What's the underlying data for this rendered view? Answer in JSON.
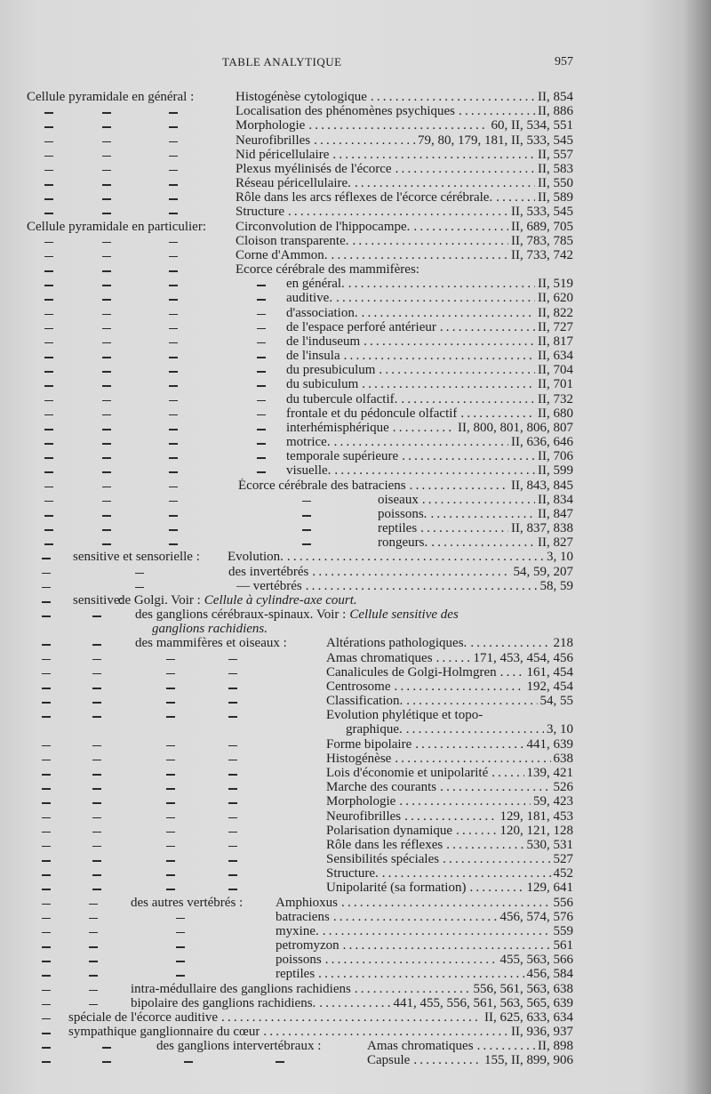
{
  "header": {
    "title": "TABLE ANALYTIQUE",
    "page_number": "957"
  },
  "ditto_mark": "—",
  "rows": [
    {
      "lead": "Cellule pyramidale en général :",
      "entry": "Histogénèse cytologique",
      "pages": "II, 854"
    },
    {
      "entry": "Localisation des phénomènes psychiques",
      "pages": "II, 886"
    },
    {
      "entry": "Morphologie",
      "pages": "60, II, 534, 551"
    },
    {
      "entry": "Neurofibrilles",
      "pages": "79, 80, 179, 181, II, 533, 545"
    },
    {
      "entry": "Nid péricellulaire",
      "pages": "II, 557"
    },
    {
      "entry": "Plexus myélinisés de l'écorce",
      "pages": "II, 583"
    },
    {
      "entry": "Réseau péricellulaire.",
      "pages": "II, 550"
    },
    {
      "entry": "Rôle dans les arcs réflexes de l'écorce cérébrale.",
      "pages": "II, 589"
    },
    {
      "entry": "Structure",
      "pages": "II, 533, 545"
    },
    {
      "lead": "Cellule pyramidale en particulier:",
      "entry": "Circonvolution de l'hippocampe.",
      "pages": "II, 689, 705"
    },
    {
      "entry": "Cloison transparente.",
      "pages": "II, 783, 785"
    },
    {
      "entry": "Corne d'Ammon.",
      "pages": "II, 733, 742"
    },
    {
      "entry": "Ecorce cérébrale des mammifères:"
    },
    {
      "entry": "en général.",
      "pages": "II, 519"
    },
    {
      "entry": "auditive.",
      "pages": "II, 620"
    },
    {
      "entry": "d'association.",
      "pages": "II, 822"
    },
    {
      "entry": "de l'espace perforé antérieur",
      "pages": "II, 727"
    },
    {
      "entry": "de l'induseum",
      "pages": "II, 817"
    },
    {
      "entry": "de l'insula",
      "pages": "II, 634"
    },
    {
      "entry": "du presubiculum",
      "pages": "II, 704"
    },
    {
      "entry": "du subiculum",
      "pages": "II, 701"
    },
    {
      "entry": "du tubercule olfactif.",
      "pages": "II, 732"
    },
    {
      "entry": "frontale et du pédoncule olfactif",
      "pages": "II, 680"
    },
    {
      "entry": "interhémisphérique",
      "pages": "II, 800, 801, 806, 807"
    },
    {
      "entry": "motrice.",
      "pages": "II, 636, 646"
    },
    {
      "entry": "temporale supérieure",
      "pages": "II, 706"
    },
    {
      "entry": "visuelle.",
      "pages": "II, 599"
    },
    {
      "entry": "Écorce cérébrale des batraciens",
      "pages": "II, 843, 845"
    },
    {
      "entry": "oiseaux",
      "pages": "II, 834"
    },
    {
      "entry": "poissons.",
      "pages": "II, 847"
    },
    {
      "entry": "reptiles",
      "pages": "II, 837, 838"
    },
    {
      "entry": "rongeurs.",
      "pages": "II, 827"
    },
    {
      "lead": "sensitive et sensorielle :",
      "entry": "Evolution.",
      "pages": "3,  10"
    },
    {
      "entry": "des invertébrés",
      "pages": "54, 59, 207"
    },
    {
      "entry": "— vertébrés",
      "pages": "58,  59"
    },
    {
      "lead": "sensitive:",
      "entry": "de Golgi. Voir :",
      "entry_italic": "Cellule à cylindre-axe court."
    },
    {
      "entry": "des ganglions cérébraux-spinaux. Voir :",
      "entry_italic": "Cellule sensitive des"
    },
    {
      "entry_italic": "ganglions rachidiens."
    },
    {
      "lead": "des mammifères et oiseaux :",
      "entry": "Altérations pathologiques.",
      "pages": "218"
    },
    {
      "entry": "Amas chromatiques",
      "pages": "171, 453, 454, 456"
    },
    {
      "entry": "Canalicules de Golgi-Holmgren",
      "pages": "161, 454"
    },
    {
      "entry": "Centrosome",
      "pages": "192, 454"
    },
    {
      "entry": "Classification.",
      "pages": "54,  55"
    },
    {
      "entry": "Evolution phylétique et topo-"
    },
    {
      "entry": "graphique.",
      "pages": "3,  10"
    },
    {
      "entry": "Forme bipolaire",
      "pages": "441, 639"
    },
    {
      "entry": "Histogénèse",
      "pages": "638"
    },
    {
      "entry": "Lois d'économie et unipolarité",
      "pages": "139, 421"
    },
    {
      "entry": "Marche des courants",
      "pages": "526"
    },
    {
      "entry": "Morphologie",
      "pages": "59, 423"
    },
    {
      "entry": "Neurofibrilles",
      "pages": "129, 181, 453"
    },
    {
      "entry": "Polarisation dynamique",
      "pages": "120, 121, 128"
    },
    {
      "entry": "Rôle dans les réflexes",
      "pages": "530, 531"
    },
    {
      "entry": "Sensibilités spéciales",
      "pages": "527"
    },
    {
      "entry": "Structure.",
      "pages": "452"
    },
    {
      "entry": "Unipolarité (sa formation)",
      "pages": "129, 641"
    },
    {
      "lead": "des autres vertébrés :",
      "entry": "Amphioxus",
      "pages": "556"
    },
    {
      "entry": "batraciens",
      "pages": "456, 574, 576"
    },
    {
      "entry": "myxine.",
      "pages": "559"
    },
    {
      "entry": "petromyzon",
      "pages": "561"
    },
    {
      "entry": "poissons",
      "pages": "455, 563, 566"
    },
    {
      "entry": "reptiles",
      "pages": "456, 584"
    },
    {
      "entry": "intra-médullaire des ganglions rachidiens",
      "pages": "556, 561, 563, 638"
    },
    {
      "entry": "bipolaire des ganglions rachidiens.",
      "pages": "441, 455, 556, 561, 563, 565, 639"
    },
    {
      "entry": "spéciale de l'écorce auditive",
      "pages": "II, 625, 633, 634"
    },
    {
      "entry": "sympathique ganglionnaire du cœur",
      "pages": "II, 936, 937"
    },
    {
      "lead": "des ganglions intervertébraux :",
      "entry": "Amas chromatiques",
      "pages": "II, 898"
    },
    {
      "entry": "Capsule",
      "pages": "155, II, 899, 906"
    }
  ]
}
